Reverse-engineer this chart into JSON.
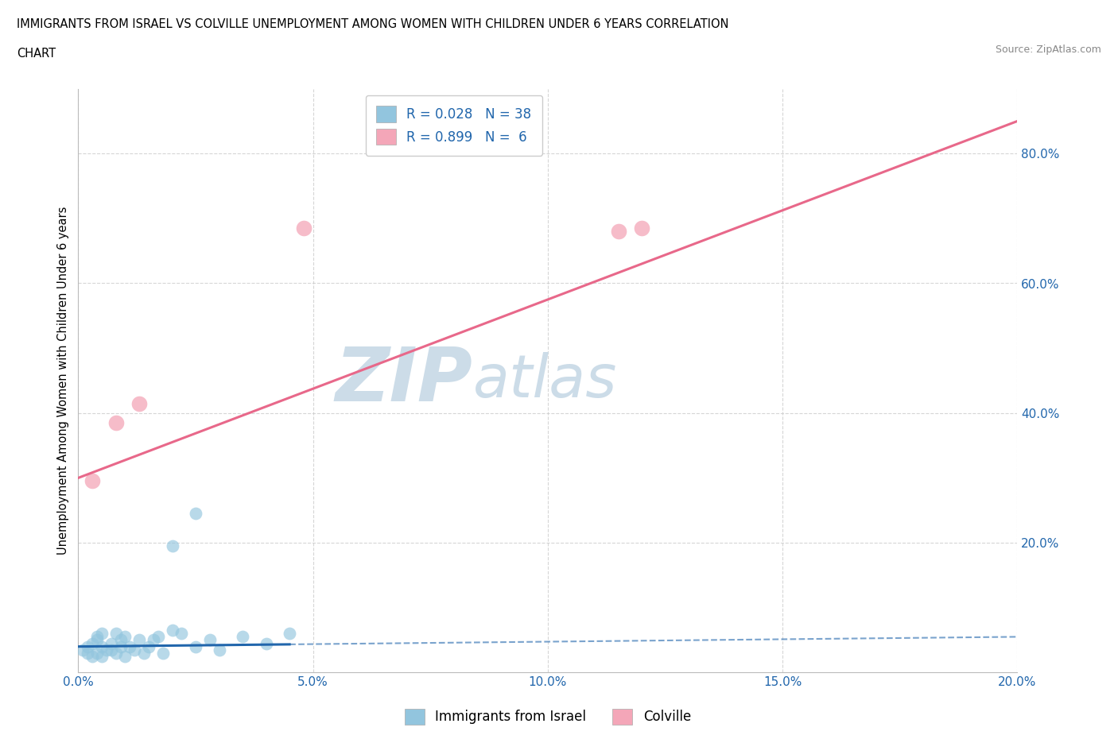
{
  "title_line1": "IMMIGRANTS FROM ISRAEL VS COLVILLE UNEMPLOYMENT AMONG WOMEN WITH CHILDREN UNDER 6 YEARS CORRELATION",
  "title_line2": "CHART",
  "source_text": "Source: ZipAtlas.com",
  "ylabel": "Unemployment Among Women with Children Under 6 years",
  "xlim": [
    0.0,
    0.2
  ],
  "ylim": [
    0.0,
    0.9
  ],
  "xtick_labels": [
    "0.0%",
    "5.0%",
    "10.0%",
    "15.0%",
    "20.0%"
  ],
  "xtick_values": [
    0.0,
    0.05,
    0.1,
    0.15,
    0.2
  ],
  "ytick_labels": [
    "20.0%",
    "40.0%",
    "60.0%",
    "80.0%"
  ],
  "ytick_values": [
    0.2,
    0.4,
    0.6,
    0.8
  ],
  "blue_color": "#92c5de",
  "pink_color": "#f4a6b8",
  "blue_line_color": "#2166ac",
  "pink_line_color": "#e8688a",
  "legend_text_color": "#2166ac",
  "R_blue": 0.028,
  "N_blue": 38,
  "R_pink": 0.899,
  "N_pink": 6,
  "blue_scatter_x": [
    0.001,
    0.002,
    0.002,
    0.003,
    0.003,
    0.004,
    0.004,
    0.004,
    0.005,
    0.005,
    0.005,
    0.006,
    0.007,
    0.007,
    0.008,
    0.008,
    0.009,
    0.009,
    0.01,
    0.01,
    0.011,
    0.012,
    0.013,
    0.014,
    0.015,
    0.016,
    0.017,
    0.018,
    0.02,
    0.022,
    0.025,
    0.028,
    0.03,
    0.035,
    0.04,
    0.045,
    0.025,
    0.02
  ],
  "blue_scatter_y": [
    0.035,
    0.03,
    0.04,
    0.025,
    0.045,
    0.03,
    0.05,
    0.055,
    0.025,
    0.04,
    0.06,
    0.035,
    0.045,
    0.035,
    0.03,
    0.06,
    0.04,
    0.05,
    0.025,
    0.055,
    0.04,
    0.035,
    0.05,
    0.03,
    0.04,
    0.05,
    0.055,
    0.03,
    0.065,
    0.06,
    0.04,
    0.05,
    0.035,
    0.055,
    0.045,
    0.06,
    0.245,
    0.195
  ],
  "pink_scatter_x": [
    0.003,
    0.008,
    0.013,
    0.048,
    0.115,
    0.12
  ],
  "pink_scatter_y": [
    0.295,
    0.385,
    0.415,
    0.685,
    0.68,
    0.685
  ],
  "pink_trend_x0": 0.0,
  "pink_trend_y0": 0.3,
  "pink_trend_x1": 0.2,
  "pink_trend_y1": 0.85,
  "blue_trend_x0": 0.0,
  "blue_trend_y0": 0.04,
  "blue_trend_x1": 0.2,
  "blue_trend_y1": 0.055,
  "watermark_zip": "ZIP",
  "watermark_atlas": "atlas",
  "watermark_color": "#ccdce8",
  "background_color": "#ffffff",
  "grid_color": "#cccccc",
  "axis_tick_color": "#2166ac"
}
